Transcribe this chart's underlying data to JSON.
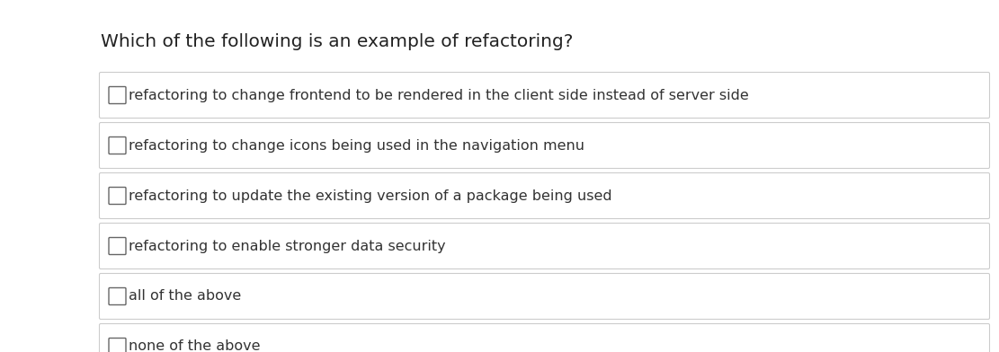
{
  "title": "Which of the following is an example of refactoring?",
  "title_fontsize": 14.5,
  "options": [
    "refactoring to change frontend to be rendered in the client side instead of server side",
    "refactoring to change icons being used in the navigation menu",
    "refactoring to update the existing version of a package being used",
    "refactoring to enable stronger data security",
    "all of the above",
    "none of the above"
  ],
  "background_color": "#ffffff",
  "option_bg_color": "#ffffff",
  "option_border_color": "#cccccc",
  "checkbox_border_color": "#666666",
  "text_color": "#333333",
  "title_color": "#222222",
  "text_fontsize": 11.5,
  "fig_width": 11.11,
  "fig_height": 3.92,
  "dpi": 100
}
